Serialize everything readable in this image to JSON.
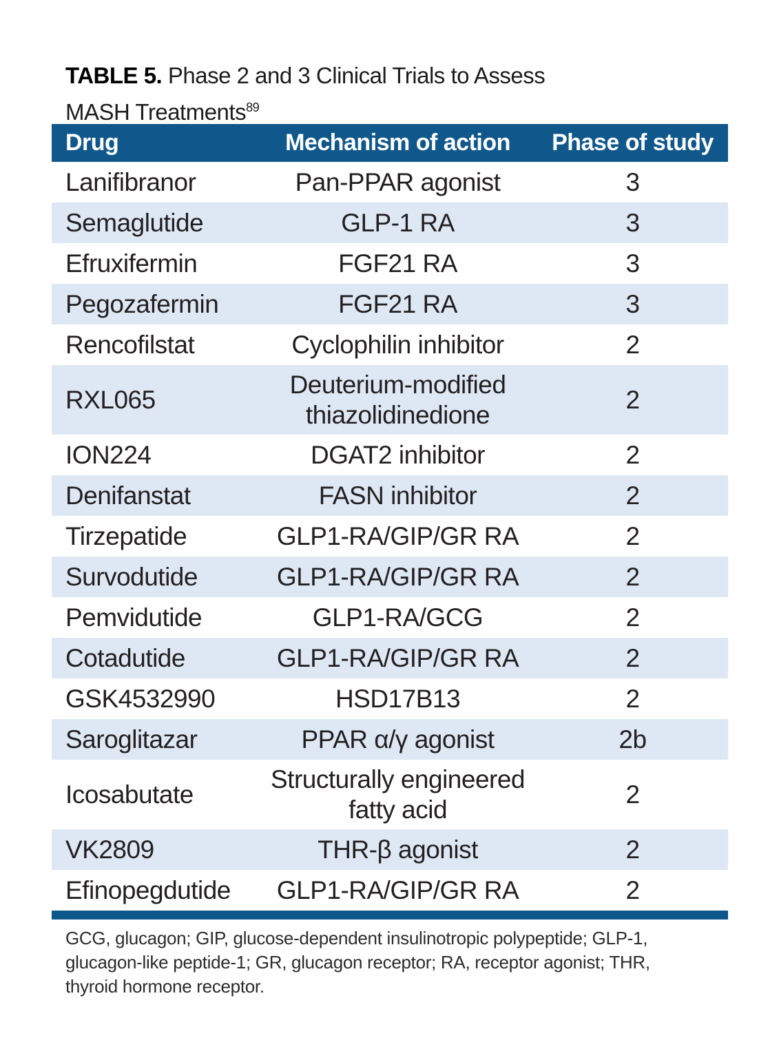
{
  "title": {
    "label": "TABLE 5.",
    "line1": "Phase 2 and 3 Clinical Trials to Assess",
    "line2": "MASH Treatments",
    "reference": "89"
  },
  "table": {
    "columns": [
      "Drug",
      "Mechanism of action",
      "Phase of study"
    ],
    "rows": [
      {
        "drug": "Lanifibranor",
        "mechanism": "Pan-PPAR agonist",
        "phase": "3"
      },
      {
        "drug": "Semaglutide",
        "mechanism": "GLP-1 RA",
        "phase": "3"
      },
      {
        "drug": "Efruxifermin",
        "mechanism": "FGF21 RA",
        "phase": "3"
      },
      {
        "drug": "Pegozafermin",
        "mechanism": "FGF21 RA",
        "phase": "3"
      },
      {
        "drug": "Rencofilstat",
        "mechanism": "Cyclophilin inhibitor",
        "phase": "2"
      },
      {
        "drug": "RXL065",
        "mechanism": "Deuterium-modified thiazolidinedione",
        "phase": "2"
      },
      {
        "drug": "ION224",
        "mechanism": "DGAT2 inhibitor",
        "phase": "2"
      },
      {
        "drug": "Denifanstat",
        "mechanism": "FASN inhibitor",
        "phase": "2"
      },
      {
        "drug": "Tirzepatide",
        "mechanism": "GLP1-RA/GIP/GR RA",
        "phase": "2"
      },
      {
        "drug": "Survodutide",
        "mechanism": "GLP1-RA/GIP/GR RA",
        "phase": "2"
      },
      {
        "drug": "Pemvidutide",
        "mechanism": "GLP1-RA/GCG",
        "phase": "2"
      },
      {
        "drug": "Cotadutide",
        "mechanism": "GLP1-RA/GIP/GR RA",
        "phase": "2"
      },
      {
        "drug": "GSK4532990",
        "mechanism": "HSD17B13",
        "phase": "2"
      },
      {
        "drug": "Saroglitazar",
        "mechanism": "PPAR α/γ agonist",
        "phase": "2b"
      },
      {
        "drug": "Icosabutate",
        "mechanism": "Structurally engineered fatty acid",
        "phase": "2"
      },
      {
        "drug": "VK2809",
        "mechanism": "THR-β agonist",
        "phase": "2"
      },
      {
        "drug": "Efinopegdutide",
        "mechanism": "GLP1-RA/GIP/GR RA",
        "phase": "2"
      }
    ]
  },
  "footnote": {
    "lines": [
      "GCG, glucagon; GIP, glucose-dependent insulinotropic polypeptide; GLP-1,",
      "glucagon-like peptide-1; GR, glucagon receptor; RA, receptor agonist; THR,",
      "thyroid hormone receptor."
    ]
  },
  "colors": {
    "header_bg": "#10588C",
    "alt_row_bg": "#DEE8F4",
    "bottom_rule": "#0E578B",
    "body_text": "#231F20",
    "header_text": "#FFFFFF"
  }
}
